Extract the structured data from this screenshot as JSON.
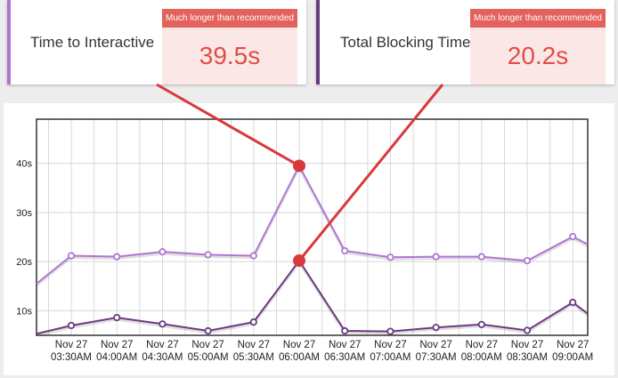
{
  "cards": [
    {
      "label": "Time to Interactive",
      "badge": "Much longer than recommended",
      "value": "39.5s",
      "accent_color": "#b176d3"
    },
    {
      "label": "Total Blocking Time",
      "badge": "Much longer than recommended",
      "value": "20.2s",
      "accent_color": "#6b3a7f"
    }
  ],
  "chart_data": {
    "type": "line",
    "categories": [
      "Nov 27 03:30AM",
      "Nov 27 04:00AM",
      "Nov 27 04:30AM",
      "Nov 27 05:00AM",
      "Nov 27 05:30AM",
      "Nov 27 06:00AM",
      "Nov 27 06:30AM",
      "Nov 27 07:00AM",
      "Nov 27 07:30AM",
      "Nov 27 08:00AM",
      "Nov 27 08:30AM",
      "Nov 27 09:00AM"
    ],
    "x_tick_lines": [
      [
        "Nov 27",
        "03:30AM"
      ],
      [
        "Nov 27",
        "04:00AM"
      ],
      [
        "Nov 27",
        "04:30AM"
      ],
      [
        "Nov 27",
        "05:00AM"
      ],
      [
        "Nov 27",
        "05:30AM"
      ],
      [
        "Nov 27",
        "06:00AM"
      ],
      [
        "Nov 27",
        "06:30AM"
      ],
      [
        "Nov 27",
        "07:00AM"
      ],
      [
        "Nov 27",
        "07:30AM"
      ],
      [
        "Nov 27",
        "08:00AM"
      ],
      [
        "Nov 27",
        "08:30AM"
      ],
      [
        "Nov 27",
        "09:00AM"
      ]
    ],
    "yticks": [
      "10s",
      "20s",
      "30s",
      "40s"
    ],
    "ytick_values": [
      10,
      20,
      30,
      40
    ],
    "ylim": [
      5,
      49
    ],
    "series": [
      {
        "color": "#b176d3",
        "partial_start": 15.5,
        "values": [
          21.2,
          21.0,
          22.0,
          21.4,
          21.2,
          39.5,
          22.2,
          20.9,
          21.0,
          21.0,
          20.2,
          25.1
        ],
        "partial_end": 23.5
      },
      {
        "color": "#6b3a7f",
        "partial_start": 5.3,
        "values": [
          7.0,
          8.6,
          7.3,
          5.9,
          7.7,
          20.2,
          5.9,
          5.8,
          6.6,
          7.2,
          6.0,
          11.7
        ],
        "partial_end": 9.4
      }
    ],
    "highlight_indices": [
      5,
      5
    ],
    "highlight_color": "#d9393b",
    "grid": true
  }
}
